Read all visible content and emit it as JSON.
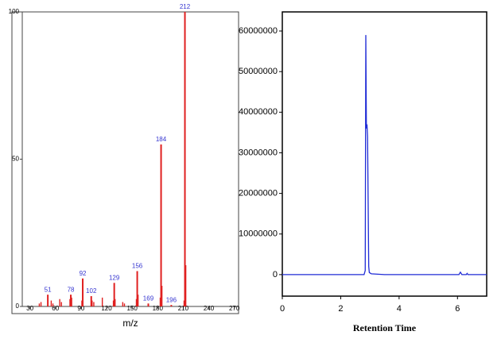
{
  "chart_data": [
    {
      "type": "bar",
      "xlabel": "m/z",
      "x": [
        51,
        78,
        92,
        102,
        129,
        156,
        169,
        184,
        196,
        212
      ],
      "values": [
        4,
        4,
        9.5,
        3.5,
        8,
        12,
        1,
        55,
        0.5,
        100
      ],
      "minor_x": [
        41,
        43,
        55,
        57,
        65,
        67,
        77,
        79,
        91,
        103,
        105,
        115,
        128,
        130,
        139,
        141,
        155,
        157,
        183,
        185,
        211,
        213
      ],
      "minor_values": [
        1,
        1.5,
        2,
        1,
        2.5,
        1.5,
        2.5,
        3,
        2,
        2,
        1.5,
        3,
        2,
        2.5,
        1.5,
        1,
        2.5,
        4,
        3,
        7,
        2,
        14
      ],
      "color": "#e02020",
      "label_color": "#3535d0",
      "xlim": [
        21,
        275
      ],
      "ylim": [
        0,
        100
      ],
      "xticks": [
        30,
        60,
        90,
        120,
        150,
        180,
        210,
        240,
        270
      ],
      "yticks": [
        0,
        50,
        100
      ]
    },
    {
      "type": "line",
      "xlabel": "Retention Time",
      "x": [
        0,
        2.8,
        2.84,
        2.86,
        2.88,
        2.9,
        2.92,
        2.94,
        2.96,
        2.98,
        3.05,
        3.5,
        6.05,
        6.1,
        6.15,
        6.3,
        6.33,
        6.36,
        7
      ],
      "values": [
        0,
        0,
        1000000,
        59000000,
        36000000,
        37000000,
        34000000,
        18000000,
        2000000,
        500000,
        200000,
        0,
        0,
        600000,
        0,
        0,
        300000,
        0,
        0
      ],
      "color": "#1f2bd6",
      "xlim": [
        0,
        7
      ],
      "ylim": [
        -5300000,
        64700000
      ],
      "xticks": [
        0,
        2,
        4,
        6
      ],
      "yticks": [
        0,
        10000000,
        20000000,
        30000000,
        40000000,
        50000000,
        60000000
      ]
    }
  ]
}
